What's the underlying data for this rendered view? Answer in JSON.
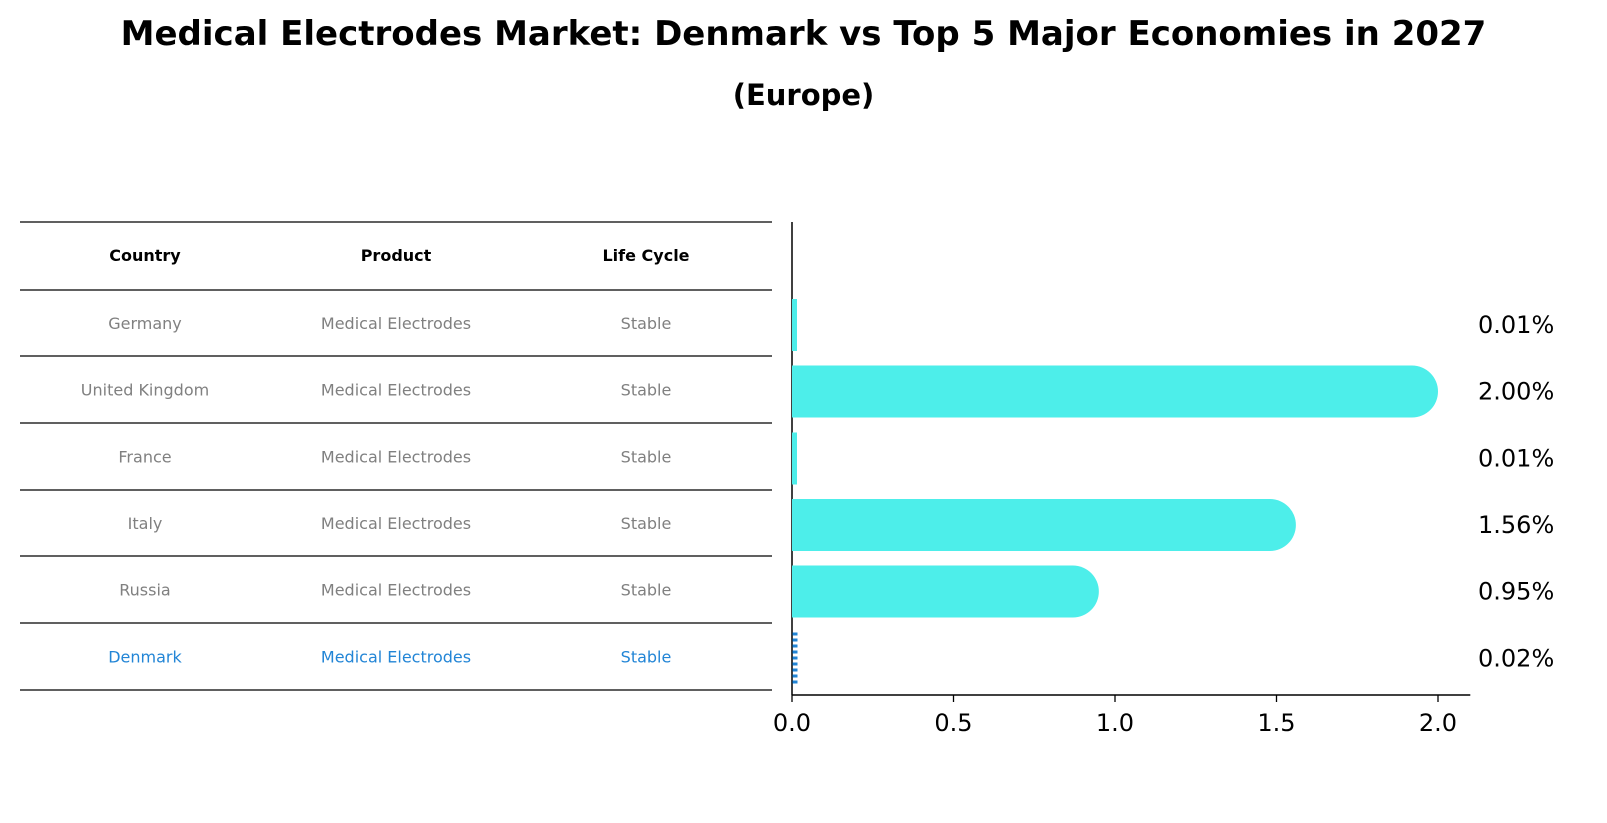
{
  "title": "Medical Electrodes Market: Denmark vs Top 5 Major Economies in 2027",
  "subtitle": "(Europe)",
  "table": {
    "headers": [
      "Country",
      "Product",
      "Life Cycle"
    ],
    "rows": [
      {
        "country": "Germany",
        "product": "Medical Electrodes",
        "life_cycle": "Stable",
        "highlight": false
      },
      {
        "country": "United Kingdom",
        "product": "Medical Electrodes",
        "life_cycle": "Stable",
        "highlight": false
      },
      {
        "country": "France",
        "product": "Medical Electrodes",
        "life_cycle": "Stable",
        "highlight": false
      },
      {
        "country": "Italy",
        "product": "Medical Electrodes",
        "life_cycle": "Stable",
        "highlight": false
      },
      {
        "country": "Russia",
        "product": "Medical Electrodes",
        "life_cycle": "Stable",
        "highlight": false
      },
      {
        "country": "Denmark",
        "product": "Medical Electrodes",
        "life_cycle": "Stable",
        "highlight": true
      }
    ]
  },
  "colors": {
    "bar": "#4deeea",
    "highlight": "#2285d6",
    "muted_text": "#808080",
    "header_text": "#000000"
  },
  "chart_data": {
    "type": "bar",
    "orientation": "horizontal",
    "categories": [
      "Germany",
      "United Kingdom",
      "France",
      "Italy",
      "Russia",
      "Denmark"
    ],
    "values": [
      0.01,
      2.0,
      0.01,
      1.56,
      0.95,
      0.02
    ],
    "value_labels": [
      "0.01%",
      "2.00%",
      "0.01%",
      "1.56%",
      "0.95%",
      "0.02%"
    ],
    "xlim": [
      0,
      2.1
    ],
    "xticks": [
      0.0,
      0.5,
      1.0,
      1.5,
      2.0
    ],
    "xtick_labels": [
      "0.0",
      "0.5",
      "1.0",
      "1.5",
      "2.0"
    ],
    "grid": false
  }
}
